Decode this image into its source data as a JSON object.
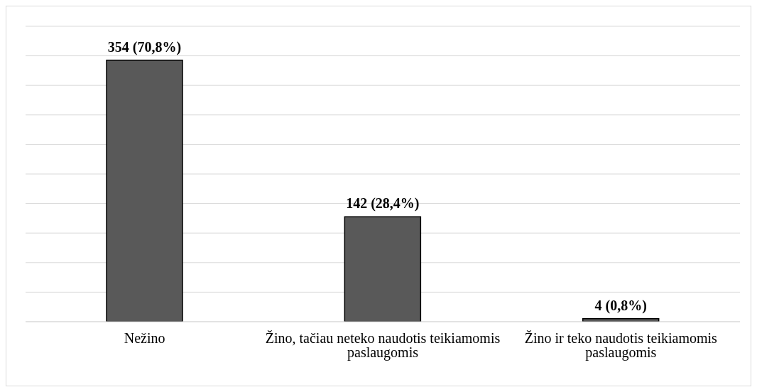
{
  "chart_data": {
    "type": "bar",
    "categories": [
      "Nežino",
      "Žino, tačiau neteko naudotis teikiamomis paslaugomis",
      "Žino ir teko naudotis teikiamomis paslaugomis"
    ],
    "values": [
      354,
      142,
      4
    ],
    "value_labels": [
      "354 (70,8%)",
      "142 (28,4%)",
      "4 (0,8%)"
    ],
    "color": "#595959",
    "grid": "y",
    "tick_labels": "x"
  }
}
